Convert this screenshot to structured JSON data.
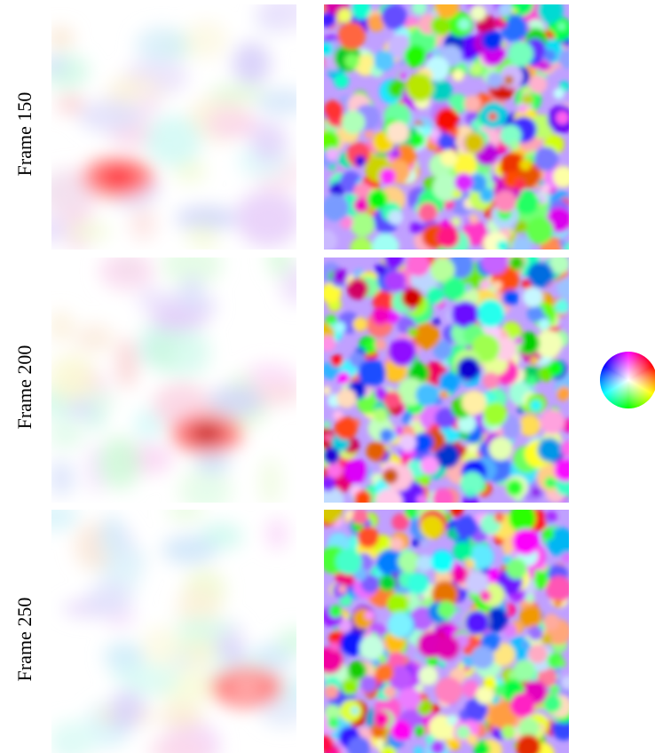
{
  "rows": [
    {
      "label": "Frame 150"
    },
    {
      "label": "Frame 200"
    },
    {
      "label": "Frame 250"
    }
  ]
}
